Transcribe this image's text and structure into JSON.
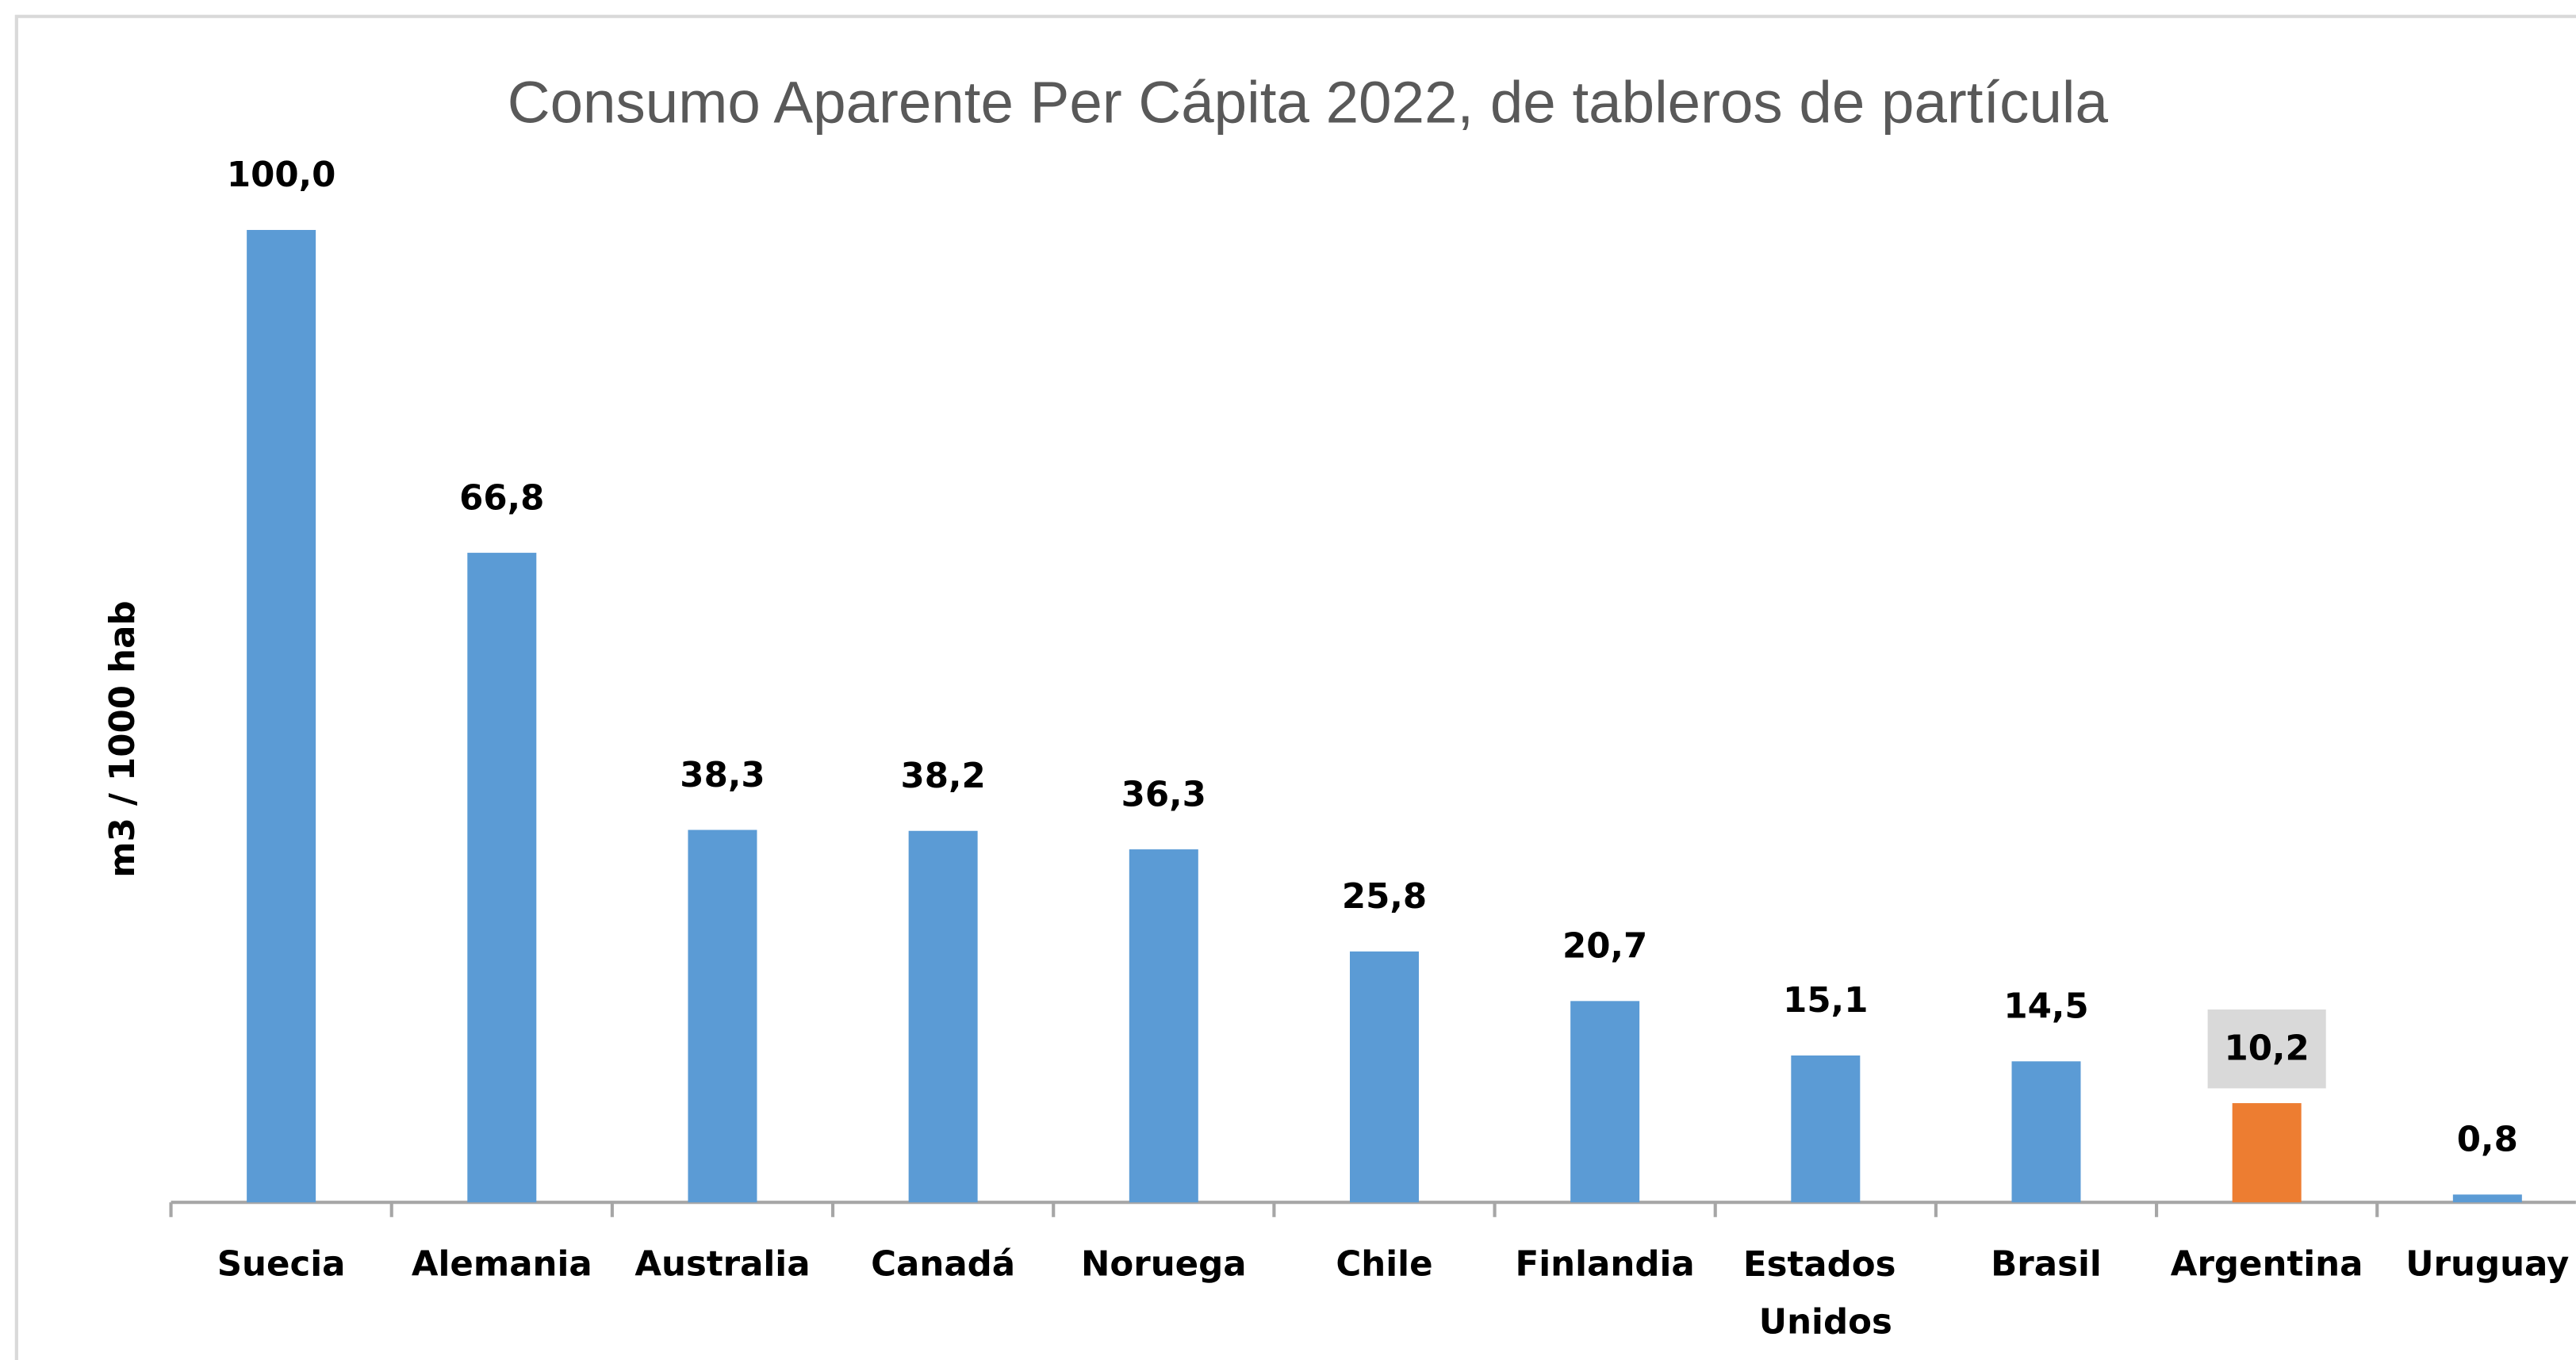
{
  "chart_data": {
    "type": "bar",
    "title": "Consumo Aparente Per Cápita 2022, de tableros de partícula",
    "y_label": "m3 / 1000 hab",
    "categories": [
      "Suecia",
      "Alemania",
      "Australia",
      "Canadá",
      "Noruega",
      "Chile",
      "Finlandia",
      "Estados Unidos",
      "Brasil",
      "Argentina",
      "Uruguay"
    ],
    "values": [
      100.0,
      66.8,
      38.3,
      38.2,
      36.3,
      25.8,
      20.7,
      15.1,
      14.5,
      10.2,
      0.8
    ],
    "value_labels": [
      "100,0",
      "66,8",
      "38,3",
      "38,2",
      "36,3",
      "25,8",
      "20,7",
      "15,1",
      "14,5",
      "10,2",
      "0,8"
    ],
    "colors": [
      "#5b9bd5",
      "#5b9bd5",
      "#5b9bd5",
      "#5b9bd5",
      "#5b9bd5",
      "#5b9bd5",
      "#5b9bd5",
      "#5b9bd5",
      "#5b9bd5",
      "#ed7d31",
      "#5b9bd5"
    ],
    "label_backgrounds": [
      null,
      null,
      null,
      null,
      null,
      null,
      null,
      null,
      null,
      "#d9d9d9",
      null
    ],
    "ylim": [
      0,
      100
    ]
  }
}
